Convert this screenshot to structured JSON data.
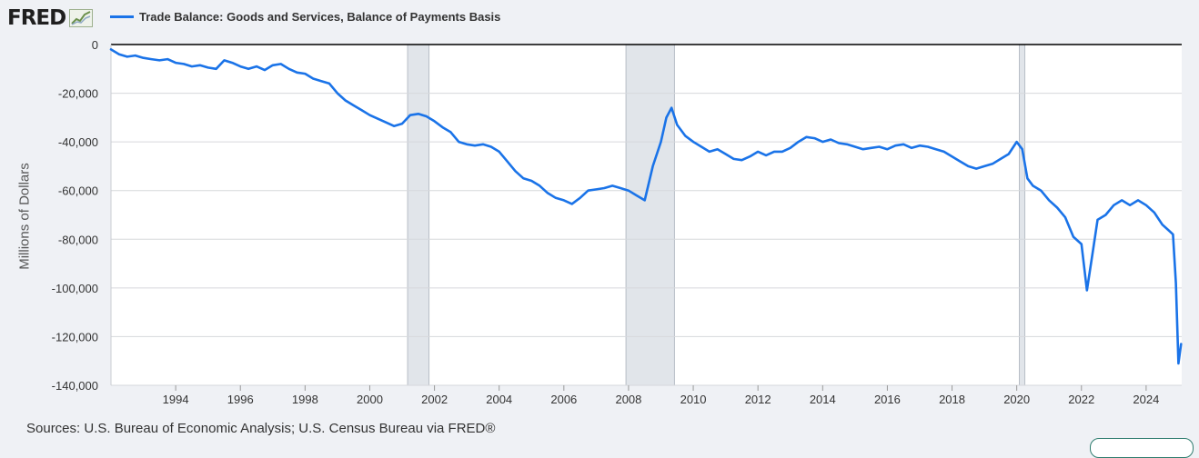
{
  "header": {
    "logo_text": "FRED",
    "legend_label": "Trade Balance: Goods and Services, Balance of Payments Basis"
  },
  "footer": {
    "source": "Sources: U.S. Bureau of Economic Analysis; U.S. Census Bureau via FRED®"
  },
  "colors": {
    "series": "#1a73e8",
    "recession": "#e1e5ea",
    "grid": "#d6d8dc",
    "plot_background": "#ffffff"
  },
  "chart_data": {
    "type": "line",
    "ylabel": "Millions of Dollars",
    "ylim": [
      -140000,
      0
    ],
    "xlim": [
      1992.0,
      2025.1
    ],
    "yticks": [
      0,
      -20000,
      -40000,
      -60000,
      -80000,
      -100000,
      -120000,
      -140000
    ],
    "ytick_labels": [
      "0",
      "-20,000",
      "-40,000",
      "-60,000",
      "-80,000",
      "-100,000",
      "-120,000",
      "-140,000"
    ],
    "xticks": [
      1994,
      1996,
      1998,
      2000,
      2002,
      2004,
      2006,
      2008,
      2010,
      2012,
      2014,
      2016,
      2018,
      2020,
      2022,
      2024
    ],
    "xtick_labels": [
      "1994",
      "1996",
      "1998",
      "2000",
      "2002",
      "2004",
      "2006",
      "2008",
      "2010",
      "2012",
      "2014",
      "2016",
      "2018",
      "2020",
      "2022",
      "2024"
    ],
    "grid": true,
    "recessions": [
      {
        "start": 2001.17,
        "end": 2001.83
      },
      {
        "start": 2007.92,
        "end": 2009.42
      },
      {
        "start": 2020.08,
        "end": 2020.25
      }
    ],
    "series": [
      {
        "name": "Trade Balance: Goods and Services, Balance of Payments Basis",
        "x": [
          1992.0,
          1992.25,
          1992.5,
          1992.75,
          1993.0,
          1993.25,
          1993.5,
          1993.75,
          1994.0,
          1994.25,
          1994.5,
          1994.75,
          1995.0,
          1995.25,
          1995.5,
          1995.75,
          1996.0,
          1996.25,
          1996.5,
          1996.75,
          1997.0,
          1997.25,
          1997.5,
          1997.75,
          1998.0,
          1998.25,
          1998.5,
          1998.75,
          1999.0,
          1999.25,
          1999.5,
          1999.75,
          2000.0,
          2000.25,
          2000.5,
          2000.75,
          2001.0,
          2001.25,
          2001.5,
          2001.75,
          2002.0,
          2002.25,
          2002.5,
          2002.75,
          2003.0,
          2003.25,
          2003.5,
          2003.75,
          2004.0,
          2004.25,
          2004.5,
          2004.75,
          2005.0,
          2005.25,
          2005.5,
          2005.75,
          2006.0,
          2006.25,
          2006.5,
          2006.75,
          2007.0,
          2007.25,
          2007.5,
          2007.75,
          2008.0,
          2008.25,
          2008.5,
          2008.75,
          2009.0,
          2009.17,
          2009.33,
          2009.5,
          2009.75,
          2010.0,
          2010.25,
          2010.5,
          2010.75,
          2011.0,
          2011.25,
          2011.5,
          2011.75,
          2012.0,
          2012.25,
          2012.5,
          2012.75,
          2013.0,
          2013.25,
          2013.5,
          2013.75,
          2014.0,
          2014.25,
          2014.5,
          2014.75,
          2015.0,
          2015.25,
          2015.5,
          2015.75,
          2016.0,
          2016.25,
          2016.5,
          2016.75,
          2017.0,
          2017.25,
          2017.5,
          2017.75,
          2018.0,
          2018.25,
          2018.5,
          2018.75,
          2019.0,
          2019.25,
          2019.5,
          2019.75,
          2020.0,
          2020.17,
          2020.33,
          2020.5,
          2020.75,
          2021.0,
          2021.25,
          2021.5,
          2021.75,
          2022.0,
          2022.17,
          2022.33,
          2022.5,
          2022.75,
          2023.0,
          2023.25,
          2023.5,
          2023.75,
          2024.0,
          2024.25,
          2024.5,
          2024.67,
          2024.83,
          2024.92,
          2025.0,
          2025.08
        ],
        "values": [
          -2000,
          -4000,
          -5000,
          -4500,
          -5500,
          -6000,
          -6500,
          -6000,
          -7500,
          -8000,
          -9000,
          -8500,
          -9500,
          -10000,
          -6500,
          -7500,
          -9000,
          -10000,
          -9000,
          -10500,
          -8500,
          -8000,
          -10000,
          -11500,
          -12000,
          -14000,
          -15000,
          -16000,
          -20000,
          -23000,
          -25000,
          -27000,
          -29000,
          -30500,
          -32000,
          -33500,
          -32500,
          -29000,
          -28500,
          -29500,
          -31500,
          -34000,
          -36000,
          -40000,
          -41000,
          -41500,
          -41000,
          -42000,
          -44000,
          -48000,
          -52000,
          -55000,
          -56000,
          -58000,
          -61000,
          -63000,
          -64000,
          -65500,
          -63000,
          -60000,
          -59500,
          -59000,
          -58000,
          -59000,
          -60000,
          -62000,
          -64000,
          -50000,
          -40000,
          -30000,
          -26000,
          -33000,
          -37500,
          -40000,
          -42000,
          -44000,
          -43000,
          -45000,
          -47000,
          -47500,
          -46000,
          -44000,
          -45500,
          -44000,
          -44000,
          -42500,
          -40000,
          -38000,
          -38500,
          -40000,
          -39000,
          -40500,
          -41000,
          -42000,
          -43000,
          -42500,
          -42000,
          -43000,
          -41500,
          -41000,
          -42500,
          -41500,
          -42000,
          -43000,
          -44000,
          -46000,
          -48000,
          -50000,
          -51000,
          -50000,
          -49000,
          -47000,
          -45000,
          -40000,
          -43000,
          -55000,
          -58000,
          -60000,
          -64000,
          -67000,
          -71000,
          -79000,
          -82000,
          -101000,
          -87000,
          -72000,
          -70000,
          -66000,
          -64000,
          -66000,
          -64000,
          -66000,
          -69000,
          -74000,
          -76000,
          -78000,
          -98000,
          -131000,
          -123000
        ]
      }
    ]
  }
}
